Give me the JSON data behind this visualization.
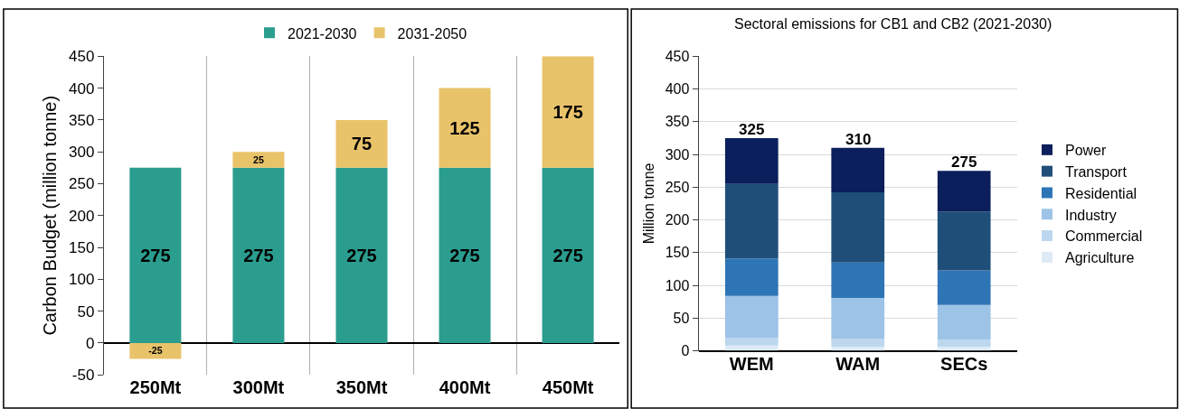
{
  "chart_data": [
    {
      "type": "bar",
      "stacked": true,
      "ylabel": "Carbon Budget (million tonne)",
      "categories": [
        "250Mt",
        "300Mt",
        "350Mt",
        "400Mt",
        "450Mt"
      ],
      "series": [
        {
          "name": "2021-2030",
          "color": "#2a9d8f",
          "values": [
            275,
            275,
            275,
            275,
            275
          ]
        },
        {
          "name": "2031-2050",
          "color": "#e8c36a",
          "values": [
            -25,
            25,
            75,
            125,
            175
          ]
        }
      ],
      "ylim": [
        -50,
        450
      ],
      "yticks": [
        -50,
        0,
        50,
        100,
        150,
        200,
        250,
        300,
        350,
        400,
        450
      ],
      "data_labels": true,
      "grid": "x",
      "legend": "top"
    },
    {
      "type": "bar",
      "stacked": true,
      "title": "Sectoral emissions for CB1 and CB2 (2021-2030)",
      "ylabel": "Million tonne",
      "categories": [
        "WEM",
        "WAM",
        "SECs"
      ],
      "series": [
        {
          "name": "Agriculture",
          "color": "#deebf7",
          "values": [
            8,
            6,
            6
          ]
        },
        {
          "name": "Commercial",
          "color": "#bdd7ee",
          "values": [
            12,
            12,
            11
          ]
        },
        {
          "name": "Industry",
          "color": "#9dc3e6",
          "values": [
            64,
            63,
            53
          ]
        },
        {
          "name": "Residential",
          "color": "#2e75b6",
          "values": [
            57,
            54,
            53
          ]
        },
        {
          "name": "Transport",
          "color": "#1f4e79",
          "values": [
            114,
            107,
            90
          ]
        },
        {
          "name": "Power",
          "color": "#0a1f5c",
          "values": [
            70,
            68,
            62
          ]
        }
      ],
      "ylim": [
        0,
        450
      ],
      "yticks": [
        0,
        50,
        100,
        150,
        200,
        250,
        300,
        350,
        400,
        450
      ],
      "totals": [
        "325",
        "310",
        "275"
      ],
      "grid": "y",
      "legend": "right"
    }
  ]
}
